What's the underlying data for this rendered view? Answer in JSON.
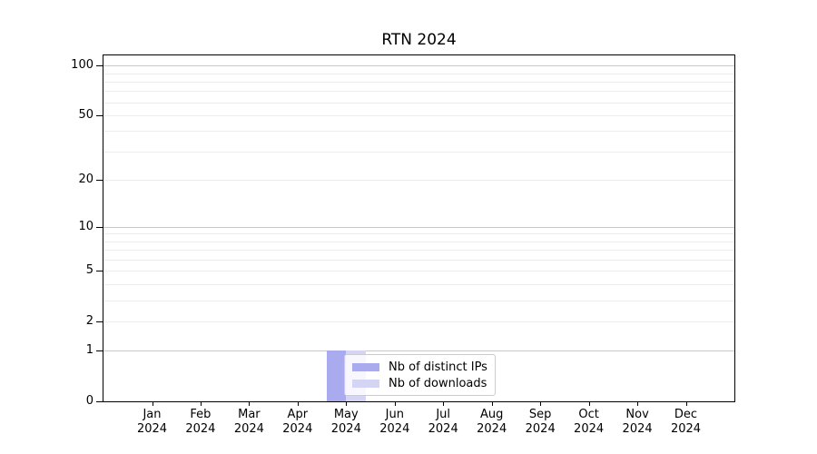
{
  "chart_data": {
    "type": "bar",
    "title": "RTN 2024",
    "categories": [
      "Jan\n2024",
      "Feb\n2024",
      "Mar\n2024",
      "Apr\n2024",
      "May\n2024",
      "Jun\n2024",
      "Jul\n2024",
      "Aug\n2024",
      "Sep\n2024",
      "Oct\n2024",
      "Nov\n2024",
      "Dec\n2024"
    ],
    "series": [
      {
        "name": "Nb of distinct IPs",
        "color": "#aaaaee",
        "values": [
          0,
          0,
          0,
          0,
          1,
          0,
          0,
          0,
          0,
          0,
          0,
          0
        ]
      },
      {
        "name": "Nb of downloads",
        "color": "#d4d4f4",
        "values": [
          0,
          0,
          0,
          0,
          1,
          0,
          0,
          0,
          0,
          0,
          0,
          0
        ]
      }
    ],
    "xlabel": "",
    "ylabel": "",
    "y_axis": {
      "scale": "log1p",
      "ylim": [
        0,
        115
      ],
      "tick_values": [
        0,
        1,
        2,
        5,
        10,
        20,
        50,
        100
      ],
      "major_gridlines": [
        1,
        10,
        100
      ],
      "minor_gridlines": [
        2,
        3,
        4,
        5,
        6,
        7,
        8,
        9,
        20,
        30,
        40,
        50,
        60,
        70,
        80,
        90
      ]
    },
    "legend": {
      "position": "lower-center-inside",
      "entries": [
        "Nb of distinct IPs",
        "Nb of downloads"
      ]
    },
    "grid": true,
    "bar_width_fraction": 0.4
  },
  "colors": {
    "background": "#ffffff",
    "spine": "#000000",
    "major_gridline": "#c8c8c8",
    "minor_gridline": "#ededed",
    "legend_border": "#cccccc",
    "text": "#000000"
  }
}
